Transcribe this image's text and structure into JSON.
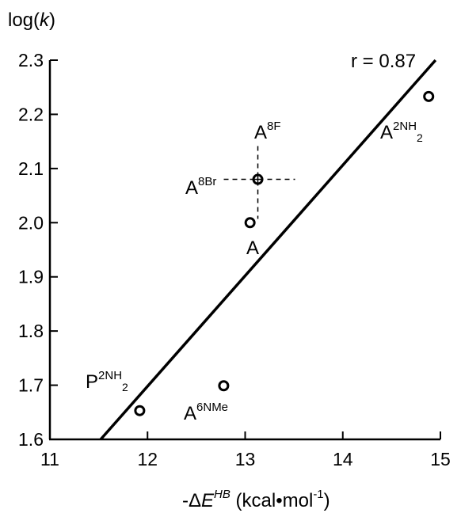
{
  "chart_data": {
    "type": "scatter",
    "title": "",
    "ylabel": "log(k)",
    "xlabel": "-ΔE^HB (kcal•mol^-1)",
    "xlim": [
      11,
      15
    ],
    "ylim": [
      1.6,
      2.3
    ],
    "x_ticks": [
      "11",
      "12",
      "13",
      "14",
      "15"
    ],
    "y_ticks": [
      "1.6",
      "1.7",
      "1.8",
      "1.9",
      "2.0",
      "2.1",
      "2.2",
      "2.3"
    ],
    "fit_line": {
      "x": [
        11.52,
        14.95
      ],
      "y": [
        1.6,
        2.3
      ],
      "label": "r = 0.87"
    },
    "points": [
      {
        "name": "P2NH2",
        "x": 11.92,
        "y": 1.653
      },
      {
        "name": "A6NMe",
        "x": 12.78,
        "y": 1.699
      },
      {
        "name": "A",
        "x": 13.05,
        "y": 2.0
      },
      {
        "name": "A8F / A8Br",
        "x": 13.13,
        "y": 2.08,
        "crosshair": true
      },
      {
        "name": "A2NH2",
        "x": 14.88,
        "y": 2.233
      }
    ],
    "point_labels": {
      "P2NH2": {
        "base": "P",
        "sup": "2NH",
        "sub": "2"
      },
      "A6NMe": {
        "base": "A",
        "sup": "6NMe"
      },
      "A": {
        "base": "A"
      },
      "A8F": {
        "base": "A",
        "sup": "8F"
      },
      "A8Br": {
        "base": "A",
        "sup": "8Br"
      },
      "A2NH2": {
        "base": "A",
        "sup": "2NH",
        "sub": "2"
      }
    },
    "axis_label_parts": {
      "y": {
        "pre": "log(",
        "italic": "k",
        "post": ")"
      },
      "x": {
        "pre": "-Δ",
        "italic": "E",
        "sup": "HB",
        "mid": " (kcal•mol",
        "sup2": "-1",
        "post": ")"
      }
    },
    "grid": false,
    "colors": {
      "marker": "#000000",
      "line": "#000000"
    }
  }
}
